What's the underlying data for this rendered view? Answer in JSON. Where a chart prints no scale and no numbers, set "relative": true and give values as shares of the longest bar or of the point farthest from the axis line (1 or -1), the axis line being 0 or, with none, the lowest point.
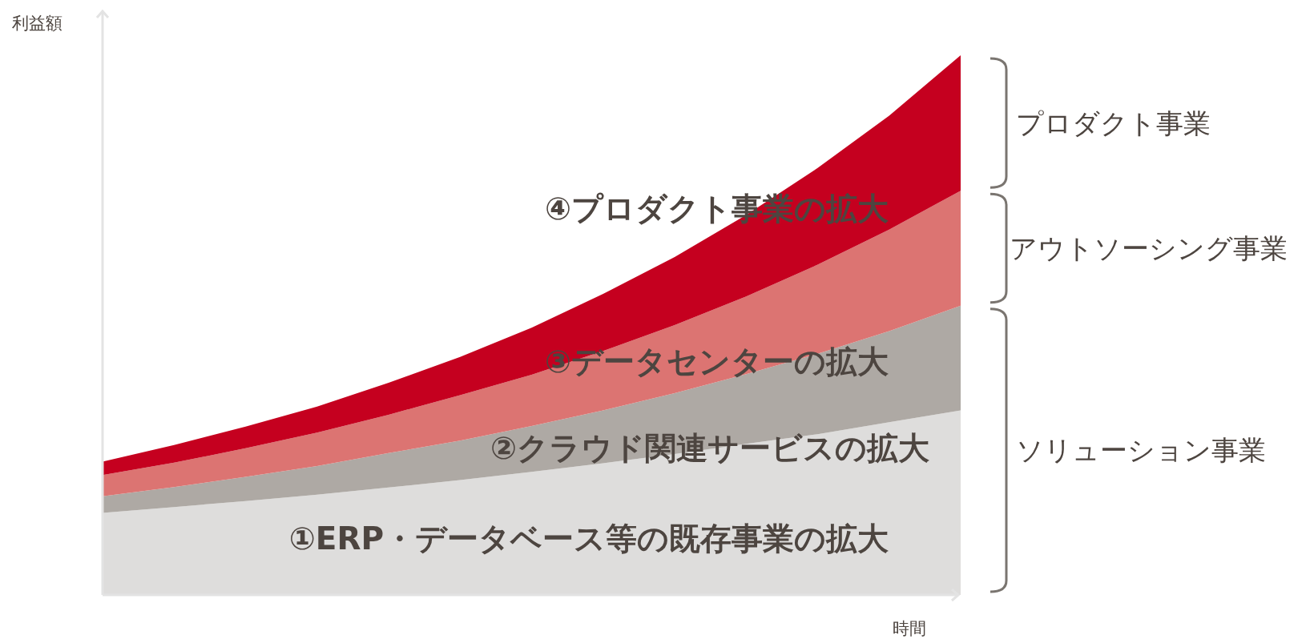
{
  "chart_data": {
    "type": "area",
    "stacked": true,
    "relative": true,
    "legend": false,
    "xlabel": "時間",
    "ylabel": "利益額",
    "categories": [
      null,
      null,
      null,
      null,
      null,
      null,
      null,
      null,
      null,
      null,
      null,
      null,
      null
    ],
    "series": [
      {
        "name": "①ERP・データベース等の既存事業の拡大",
        "color": "#dedddc",
        "values": [
          0.152,
          0.163,
          0.174,
          0.186,
          0.199,
          0.213,
          0.228,
          0.244,
          0.261,
          0.28,
          0.298,
          0.32,
          0.342
        ]
      },
      {
        "name": "②クラウド関連サービスの拡大",
        "color": "#aea9a4",
        "values": [
          0.031,
          0.037,
          0.045,
          0.053,
          0.064,
          0.073,
          0.085,
          0.098,
          0.113,
          0.129,
          0.149,
          0.169,
          0.194
        ]
      },
      {
        "name": "③データセンターの拡大",
        "color": "#dc7472",
        "values": [
          0.039,
          0.045,
          0.053,
          0.062,
          0.071,
          0.084,
          0.095,
          0.11,
          0.126,
          0.144,
          0.165,
          0.188,
          0.213
        ]
      },
      {
        "name": "④プロダクト事業の拡大",
        "color": "#c5001f",
        "values": [
          0.025,
          0.033,
          0.04,
          0.048,
          0.059,
          0.071,
          0.087,
          0.106,
          0.126,
          0.151,
          0.179,
          0.211,
          0.251
        ]
      }
    ],
    "annotations": [
      "プロダクト事業",
      "アウトソーシング事業",
      "ソリューション事業"
    ]
  }
}
